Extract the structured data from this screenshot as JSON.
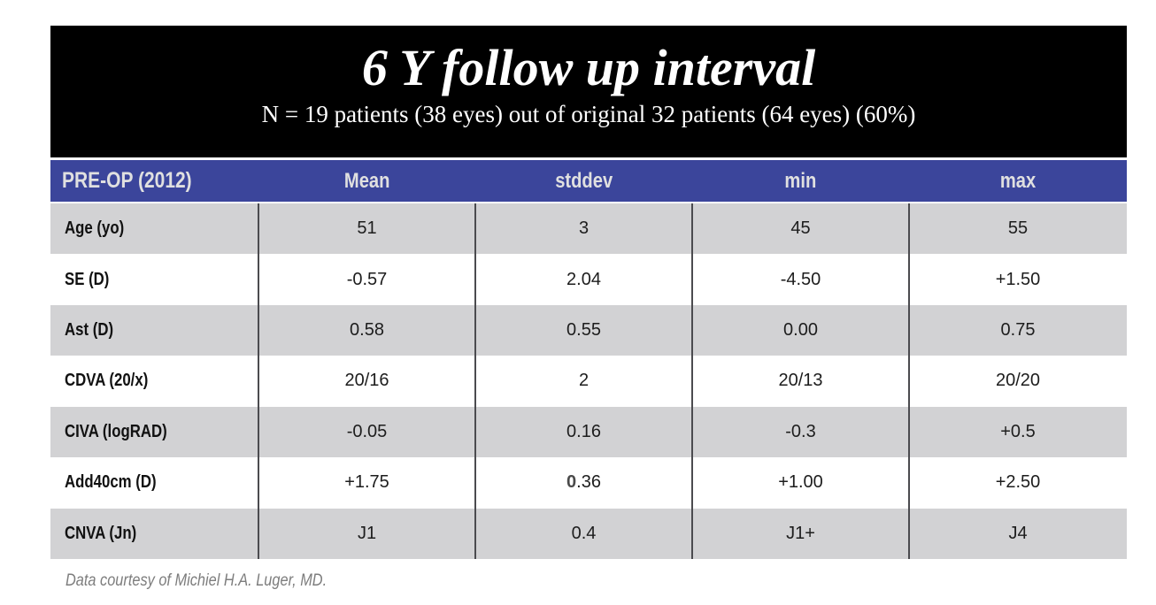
{
  "banner": {
    "title": "6 Y follow up interval",
    "subtitle": "N = 19 patients (38 eyes) out of original 32 patients (64 eyes) (60%)"
  },
  "table": {
    "header": {
      "label": "PRE-OP (2012)",
      "columns": [
        "Mean",
        "stddev",
        "min",
        "max"
      ]
    },
    "rows": [
      {
        "label": "Age (yo)",
        "values": [
          "51",
          "3",
          "45",
          "55"
        ]
      },
      {
        "label": "SE (D)",
        "values": [
          "-0.57",
          "2.04",
          "-4.50",
          "+1.50"
        ]
      },
      {
        "label": "Ast (D)",
        "values": [
          "0.58",
          "0.55",
          "0.00",
          "0.75"
        ]
      },
      {
        "label": "CDVA (20/x)",
        "values": [
          "20/16",
          "2",
          "20/13",
          "20/20"
        ]
      },
      {
        "label": "CIVA (logRAD)",
        "values": [
          "-0.05",
          "0.16",
          "-0.3",
          "+0.5"
        ]
      },
      {
        "label": "Add40cm (D)",
        "values": [
          "+1.75",
          "0.36",
          "+1.00",
          "+2.50"
        ],
        "bold_first_char_col": 1
      },
      {
        "label": "CNVA (Jn)",
        "values": [
          "J1",
          "0.4",
          "J1+",
          "J4"
        ]
      }
    ]
  },
  "footer": {
    "credit": "Data courtesy of Michiel H.A. Luger, MD."
  },
  "colors": {
    "banner_bg": "#000000",
    "header_bg": "#3b459b",
    "header_text": "#e0e0e0",
    "row_alt_bg": "#d2d2d4",
    "divider": "#4b4b4f"
  },
  "chart_data": {
    "type": "table",
    "title": "6 Y follow up interval",
    "subtitle": "N = 19 patients (38 eyes) out of original 32 patients (64 eyes) (60%)",
    "columns": [
      "PRE-OP (2012)",
      "Mean",
      "stddev",
      "min",
      "max"
    ],
    "rows": [
      [
        "Age (yo)",
        "51",
        "3",
        "45",
        "55"
      ],
      [
        "SE (D)",
        "-0.57",
        "2.04",
        "-4.50",
        "+1.50"
      ],
      [
        "Ast (D)",
        "0.58",
        "0.55",
        "0.00",
        "0.75"
      ],
      [
        "CDVA (20/x)",
        "20/16",
        "2",
        "20/13",
        "20/20"
      ],
      [
        "CIVA (logRAD)",
        "-0.05",
        "0.16",
        "-0.3",
        "+0.5"
      ],
      [
        "Add40cm (D)",
        "+1.75",
        "0.36",
        "+1.00",
        "+2.50"
      ],
      [
        "CNVA (Jn)",
        "J1",
        "0.4",
        "J1+",
        "J4"
      ]
    ],
    "credit": "Data courtesy of Michiel H.A. Luger, MD."
  }
}
